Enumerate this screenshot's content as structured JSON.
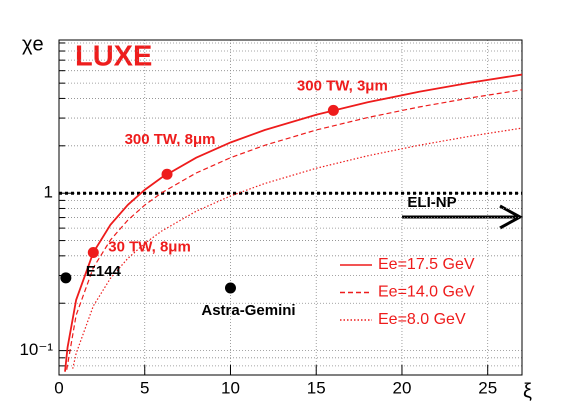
{
  "chart_data": {
    "type": "line",
    "title": "LUXE",
    "x_label": "ξ",
    "y_label": "χe",
    "xlim": [
      0,
      27
    ],
    "ylim": [
      0.07,
      9.4
    ],
    "log_y": true,
    "grid": true,
    "xticks": [
      0,
      5,
      10,
      15,
      20,
      25
    ],
    "yticks": [
      {
        "value": 0.1,
        "label": "10⁻¹"
      },
      1
    ],
    "minor_yticks": [
      0.07,
      0.08,
      0.09,
      0.2,
      0.3,
      0.4,
      0.5,
      0.6,
      0.7,
      0.8,
      0.9,
      2,
      3,
      4,
      5,
      6,
      7,
      8,
      9
    ],
    "series": [
      {
        "name": "Ee=17.5 GeV",
        "color": "#ee1c1c",
        "dash": "solid",
        "x": [
          0.35,
          0.5,
          1,
          2,
          3,
          4,
          5,
          6,
          8,
          10,
          12,
          15,
          18,
          21,
          24,
          27
        ],
        "values": [
          0.0735,
          0.105,
          0.21,
          0.42,
          0.63,
          0.84,
          1.05,
          1.26,
          1.68,
          2.1,
          2.52,
          3.15,
          3.78,
          4.41,
          5.04,
          5.67
        ]
      },
      {
        "name": "Ee=14.0 GeV",
        "color": "#ee1c1c",
        "dash": "dashed",
        "x": [
          0.45,
          1,
          2,
          3,
          4,
          5,
          6,
          8,
          10,
          12,
          15,
          18,
          21,
          24,
          27
        ],
        "values": [
          0.0756,
          0.168,
          0.336,
          0.504,
          0.672,
          0.84,
          1.008,
          1.344,
          1.68,
          2.016,
          2.52,
          3.024,
          3.528,
          4.032,
          4.536
        ]
      },
      {
        "name": "Ee=8.0 GeV",
        "color": "#ee1c1c",
        "dash": "dotted",
        "x": [
          0.8,
          1,
          2,
          3,
          4,
          5,
          6,
          8,
          10,
          12,
          15,
          18,
          21,
          24,
          27
        ],
        "values": [
          0.0768,
          0.096,
          0.192,
          0.288,
          0.384,
          0.48,
          0.576,
          0.768,
          0.96,
          1.152,
          1.44,
          1.728,
          2.016,
          2.304,
          2.592
        ]
      }
    ],
    "points": [
      {
        "label": "30 TW, 8μm",
        "x": 2,
        "y": 0.42,
        "color": "#ee1c1c"
      },
      {
        "label": "300 TW, 8μm",
        "x": 6.3,
        "y": 1.32,
        "color": "#ee1c1c"
      },
      {
        "label": "300 TW, 3μm",
        "x": 16,
        "y": 3.36,
        "color": "#ee1c1c"
      },
      {
        "label": "E144",
        "x": 0.4,
        "y": 0.29,
        "color": "#000000"
      },
      {
        "label": "Astra-Gemini",
        "x": 10,
        "y": 0.25,
        "color": "#000000"
      }
    ],
    "reference_line": {
      "y": 1,
      "label": "ELI-NP"
    }
  }
}
